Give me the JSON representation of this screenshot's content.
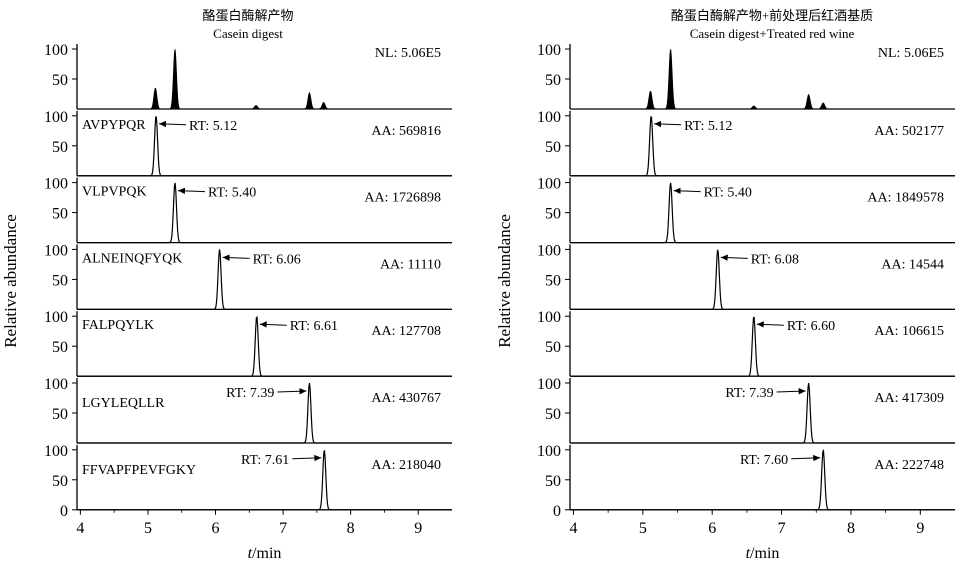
{
  "chart_data": [
    {
      "type": "line",
      "title": "酪蛋白酶解产物",
      "subtitle": "Casein digest",
      "ylabel": "Relative abundance",
      "xlabel_italic": "t",
      "xlabel_rest": "/min",
      "xlim": [
        3.95,
        9.5
      ],
      "ylim": [
        0,
        100
      ],
      "x_ticks": [
        "4",
        "5",
        "6",
        "7",
        "8",
        "9"
      ],
      "y_ticks": [
        "0",
        "50",
        "100"
      ],
      "total_ion": {
        "label": "NL: 5.06E5",
        "peaks": [
          {
            "rt": 5.11,
            "height": 35
          },
          {
            "rt": 5.4,
            "height": 100
          },
          {
            "rt": 6.6,
            "height": 6
          },
          {
            "rt": 7.39,
            "height": 27
          },
          {
            "rt": 7.6,
            "height": 11
          }
        ]
      },
      "traces": [
        {
          "peptide": "AVPYPQR",
          "rt": 5.12,
          "rt_label": "RT: 5.12",
          "area_label": "AA: 569816",
          "area": 569816
        },
        {
          "peptide": "VLPVPQK",
          "rt": 5.4,
          "rt_label": "RT: 5.40",
          "area_label": "AA: 1726898",
          "area": 1726898
        },
        {
          "peptide": "ALNEINQFYQK",
          "rt": 6.06,
          "rt_label": "RT: 6.06",
          "area_label": "AA: 11110",
          "area": 11110
        },
        {
          "peptide": "FALPQYLK",
          "rt": 6.61,
          "rt_label": "RT: 6.61",
          "area_label": "AA: 127708",
          "area": 127708
        },
        {
          "peptide": "LGYLEQLLR",
          "rt": 7.39,
          "rt_label": "RT: 7.39",
          "area_label": "AA: 430767",
          "area": 430767
        },
        {
          "peptide": "FFVAPFPEVFGKY",
          "rt": 7.61,
          "rt_label": "RT: 7.61",
          "area_label": "AA: 218040",
          "area": 218040
        }
      ]
    },
    {
      "type": "line",
      "title": "酪蛋白酶解产物+前处理后红酒基质",
      "subtitle": "Casein digest+Treated red wine",
      "ylabel": "Relative abundance",
      "xlabel_italic": "t",
      "xlabel_rest": "/min",
      "xlim": [
        3.95,
        9.5
      ],
      "ylim": [
        0,
        100
      ],
      "x_ticks": [
        "4",
        "5",
        "6",
        "7",
        "8",
        "9"
      ],
      "y_ticks": [
        "0",
        "50",
        "100"
      ],
      "total_ion": {
        "label": "NL: 5.06E5",
        "peaks": [
          {
            "rt": 5.11,
            "height": 30
          },
          {
            "rt": 5.4,
            "height": 100
          },
          {
            "rt": 6.6,
            "height": 5
          },
          {
            "rt": 7.39,
            "height": 24
          },
          {
            "rt": 7.6,
            "height": 10
          }
        ]
      },
      "traces": [
        {
          "peptide": "",
          "rt": 5.12,
          "rt_label": "RT: 5.12",
          "area_label": "AA: 502177",
          "area": 502177
        },
        {
          "peptide": "",
          "rt": 5.4,
          "rt_label": "RT: 5.40",
          "area_label": "AA: 1849578",
          "area": 1849578
        },
        {
          "peptide": "",
          "rt": 6.08,
          "rt_label": "RT: 6.08",
          "area_label": "AA: 14544",
          "area": 14544
        },
        {
          "peptide": "",
          "rt": 6.6,
          "rt_label": "RT: 6.60",
          "area_label": "AA: 106615",
          "area": 106615
        },
        {
          "peptide": "",
          "rt": 7.39,
          "rt_label": "RT: 7.39",
          "area_label": "AA: 417309",
          "area": 417309
        },
        {
          "peptide": "",
          "rt": 7.6,
          "rt_label": "RT: 7.60",
          "area_label": "AA: 222748",
          "area": 222748
        }
      ]
    }
  ]
}
